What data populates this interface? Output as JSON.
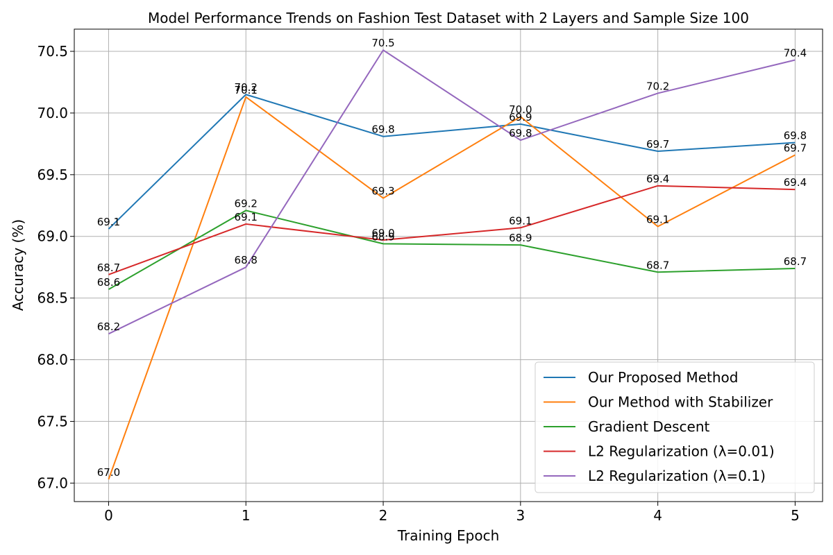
{
  "chart_data": {
    "type": "line",
    "title": "Model Performance Trends on Fashion Test Dataset with 2 Layers and Sample Size 100",
    "xlabel": "Training Epoch",
    "ylabel": "Accuracy (%)",
    "x": [
      0,
      1,
      2,
      3,
      4,
      5
    ],
    "xlim": [
      -0.25,
      5.2
    ],
    "ylim": [
      66.85,
      70.68
    ],
    "xticks": [
      "0",
      "1",
      "2",
      "3",
      "4",
      "5"
    ],
    "yticks": [
      "67.0",
      "67.5",
      "68.0",
      "68.5",
      "69.0",
      "69.5",
      "70.0",
      "70.5"
    ],
    "grid": true,
    "legend_position": "lower-right",
    "series": [
      {
        "name": "Our Proposed Method",
        "color": "#1f77b4",
        "values": [
          69.06,
          70.15,
          69.81,
          69.91,
          69.69,
          69.76
        ],
        "labels": [
          "69.1",
          "70.2",
          "69.8",
          "69.9",
          "69.7",
          "69.8"
        ]
      },
      {
        "name": "Our Method with Stabilizer",
        "color": "#ff7f0e",
        "values": [
          67.03,
          70.13,
          69.31,
          69.97,
          69.08,
          69.66
        ],
        "labels": [
          "67.0",
          "70.1",
          "69.3",
          "70.0",
          "69.1",
          "69.7"
        ]
      },
      {
        "name": "Gradient Descent",
        "color": "#2ca02c",
        "values": [
          68.57,
          69.21,
          68.94,
          68.93,
          68.71,
          68.74
        ],
        "labels": [
          "68.6",
          "69.2",
          "68.9",
          "68.9",
          "68.7",
          "68.7"
        ]
      },
      {
        "name": "L2 Regularization (λ=0.01)",
        "color": "#d62728",
        "values": [
          68.69,
          69.1,
          68.97,
          69.07,
          69.41,
          69.38
        ],
        "labels": [
          "68.7",
          "69.1",
          "69.0",
          "69.1",
          "69.4",
          "69.4"
        ]
      },
      {
        "name": "L2 Regularization (λ=0.1)",
        "color": "#9467bd",
        "values": [
          68.21,
          68.75,
          70.51,
          69.78,
          70.16,
          70.43
        ],
        "labels": [
          "68.2",
          "68.8",
          "70.5",
          "69.8",
          "70.2",
          "70.4"
        ]
      }
    ]
  }
}
